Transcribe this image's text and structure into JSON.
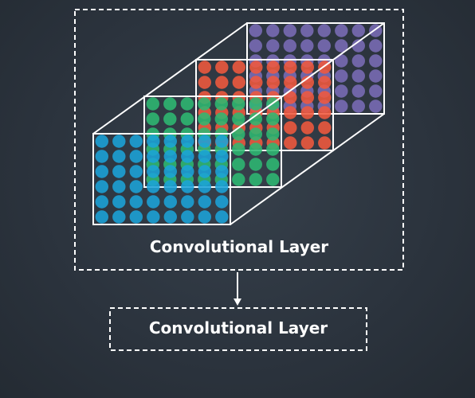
{
  "diagram": {
    "main_label": "Convolutional Layer",
    "next_label": "Convolutional Layer",
    "colors": {
      "background": "#2b333d",
      "stroke": "#ffffff",
      "cyan": "#1ba3d8",
      "green": "#2eb872",
      "red": "#f0593e",
      "purple": "#7a6cb6"
    },
    "feature_maps": [
      {
        "name": "purple-feature-map",
        "color": "#7a6cb6",
        "rows": 6,
        "cols": 8
      },
      {
        "name": "red-feature-map",
        "color": "#f0593e",
        "rows": 6,
        "cols": 8
      },
      {
        "name": "green-feature-map",
        "color": "#2eb872",
        "rows": 6,
        "cols": 8
      },
      {
        "name": "cyan-feature-map",
        "color": "#1ba3d8",
        "rows": 6,
        "cols": 8
      }
    ]
  }
}
